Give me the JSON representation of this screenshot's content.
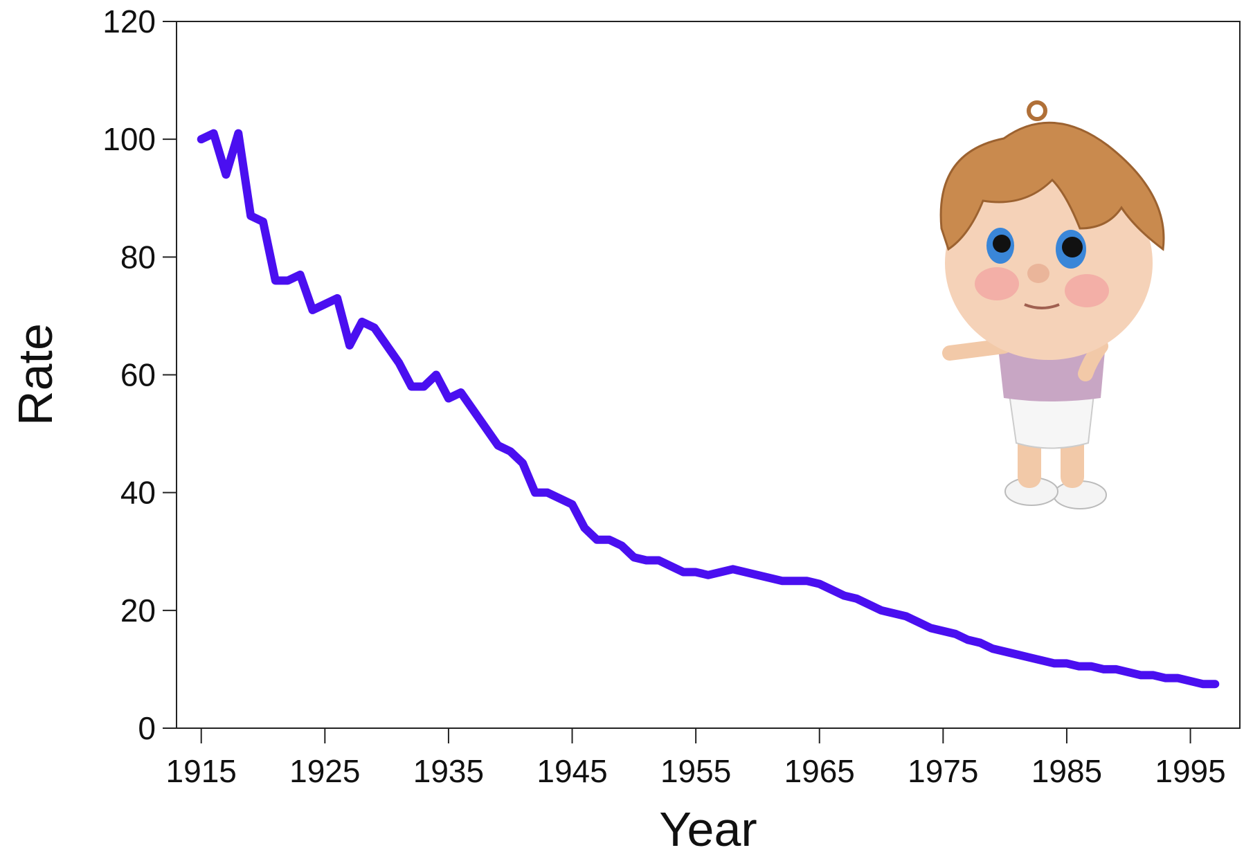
{
  "chart_data": {
    "type": "line",
    "x_label": "Year",
    "y_label": "Rate",
    "x": [
      1915,
      1916,
      1917,
      1918,
      1919,
      1920,
      1921,
      1922,
      1923,
      1924,
      1925,
      1926,
      1927,
      1928,
      1929,
      1930,
      1931,
      1932,
      1933,
      1934,
      1935,
      1936,
      1937,
      1938,
      1939,
      1940,
      1941,
      1942,
      1943,
      1944,
      1945,
      1946,
      1947,
      1948,
      1949,
      1950,
      1951,
      1952,
      1953,
      1954,
      1955,
      1956,
      1957,
      1958,
      1959,
      1960,
      1961,
      1962,
      1963,
      1964,
      1965,
      1966,
      1967,
      1968,
      1969,
      1970,
      1971,
      1972,
      1973,
      1974,
      1975,
      1976,
      1977,
      1978,
      1979,
      1980,
      1981,
      1982,
      1983,
      1984,
      1985,
      1986,
      1987,
      1988,
      1989,
      1990,
      1991,
      1992,
      1993,
      1994,
      1995,
      1996,
      1997
    ],
    "series": [
      {
        "color": "#4a0ff0",
        "values": [
          100,
          101,
          94,
          101,
          87,
          86,
          76,
          76,
          77,
          71,
          72,
          73,
          65,
          69,
          68,
          65,
          62,
          58,
          58,
          60,
          56,
          57,
          54,
          51,
          48,
          47,
          45,
          40,
          40,
          39,
          38,
          34,
          32,
          32,
          31,
          29,
          28.5,
          28.5,
          27.5,
          26.5,
          26.5,
          26,
          26.5,
          27,
          26.5,
          26,
          25.5,
          25,
          25,
          25,
          24.5,
          23.5,
          22.5,
          22,
          21,
          20,
          19.5,
          19,
          18,
          17,
          16.5,
          16,
          15,
          14.5,
          13.5,
          13,
          12.5,
          12,
          11.5,
          11,
          11,
          10.5,
          10.5,
          10,
          10,
          9.5,
          9,
          9,
          8.5,
          8.5,
          8,
          7.5,
          7.5
        ]
      }
    ],
    "xlim": [
      1913,
      1999
    ],
    "ylim": [
      0,
      120
    ],
    "xticks": [
      1915,
      1925,
      1935,
      1945,
      1955,
      1965,
      1975,
      1985,
      1995
    ],
    "yticks": [
      0,
      20,
      40,
      60,
      80,
      100,
      120
    ]
  }
}
